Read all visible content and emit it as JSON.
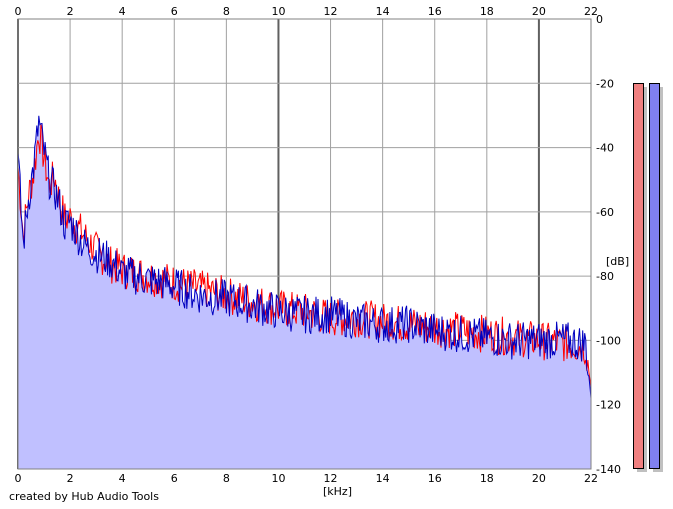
{
  "credit": "created by Hub Audio Tools",
  "chart_data": {
    "type": "area",
    "xlabel": "[kHz]",
    "ylabel": "[dB]",
    "xlim": [
      0,
      22
    ],
    "ylim": [
      -140,
      0
    ],
    "x_ticks": [
      "0",
      "2",
      "4",
      "6",
      "8",
      "10",
      "12",
      "14",
      "16",
      "18",
      "20",
      "22"
    ],
    "y_ticks": [
      "0",
      "-20",
      "-40",
      "-60",
      "-80",
      "-100",
      "-120",
      "-140"
    ],
    "grid": true,
    "fill_color": "#c0c0ff",
    "series": [
      {
        "color": "#ff0000",
        "values": [
          [
            0,
            -46
          ],
          [
            0.2,
            -67
          ],
          [
            0.4,
            -55
          ],
          [
            0.6,
            -48
          ],
          [
            0.8,
            -35
          ],
          [
            1.0,
            -43
          ],
          [
            1.2,
            -52
          ],
          [
            1.4,
            -49
          ],
          [
            1.6,
            -57
          ],
          [
            1.8,
            -62
          ],
          [
            2.0,
            -62
          ],
          [
            2.5,
            -67
          ],
          [
            3.0,
            -72
          ],
          [
            3.5,
            -76
          ],
          [
            4.0,
            -78
          ],
          [
            5.0,
            -80
          ],
          [
            6.0,
            -82
          ],
          [
            7.0,
            -84
          ],
          [
            8.0,
            -86
          ],
          [
            9.0,
            -88
          ],
          [
            10.0,
            -90
          ],
          [
            11.0,
            -91
          ],
          [
            12.0,
            -93
          ],
          [
            13.0,
            -93
          ],
          [
            14.0,
            -94
          ],
          [
            15.0,
            -95
          ],
          [
            16.0,
            -96
          ],
          [
            17.0,
            -97
          ],
          [
            18.0,
            -98
          ],
          [
            19.0,
            -99
          ],
          [
            20.0,
            -100
          ],
          [
            21.0,
            -101
          ],
          [
            21.8,
            -102
          ],
          [
            22.0,
            -115
          ]
        ]
      },
      {
        "color": "#0000c0",
        "values": [
          [
            0,
            -43
          ],
          [
            0.2,
            -70
          ],
          [
            0.4,
            -56
          ],
          [
            0.6,
            -46
          ],
          [
            0.8,
            -32
          ],
          [
            1.0,
            -41
          ],
          [
            1.2,
            -50
          ],
          [
            1.4,
            -53
          ],
          [
            1.6,
            -58
          ],
          [
            1.8,
            -64
          ],
          [
            2.0,
            -63
          ],
          [
            2.5,
            -70
          ],
          [
            3.0,
            -73
          ],
          [
            3.5,
            -75
          ],
          [
            4.0,
            -79
          ],
          [
            5.0,
            -81
          ],
          [
            6.0,
            -83
          ],
          [
            7.0,
            -86
          ],
          [
            8.0,
            -87
          ],
          [
            9.0,
            -89
          ],
          [
            10.0,
            -91
          ],
          [
            11.0,
            -92
          ],
          [
            12.0,
            -92
          ],
          [
            13.0,
            -94
          ],
          [
            14.0,
            -95
          ],
          [
            15.0,
            -95
          ],
          [
            16.0,
            -97
          ],
          [
            17.0,
            -98
          ],
          [
            18.0,
            -99
          ],
          [
            19.0,
            -100
          ],
          [
            20.0,
            -100
          ],
          [
            21.0,
            -100
          ],
          [
            21.8,
            -101
          ],
          [
            22.0,
            -118
          ]
        ]
      }
    ]
  },
  "meters": [
    {
      "color": "#f08080"
    },
    {
      "color": "#8080f0"
    }
  ]
}
